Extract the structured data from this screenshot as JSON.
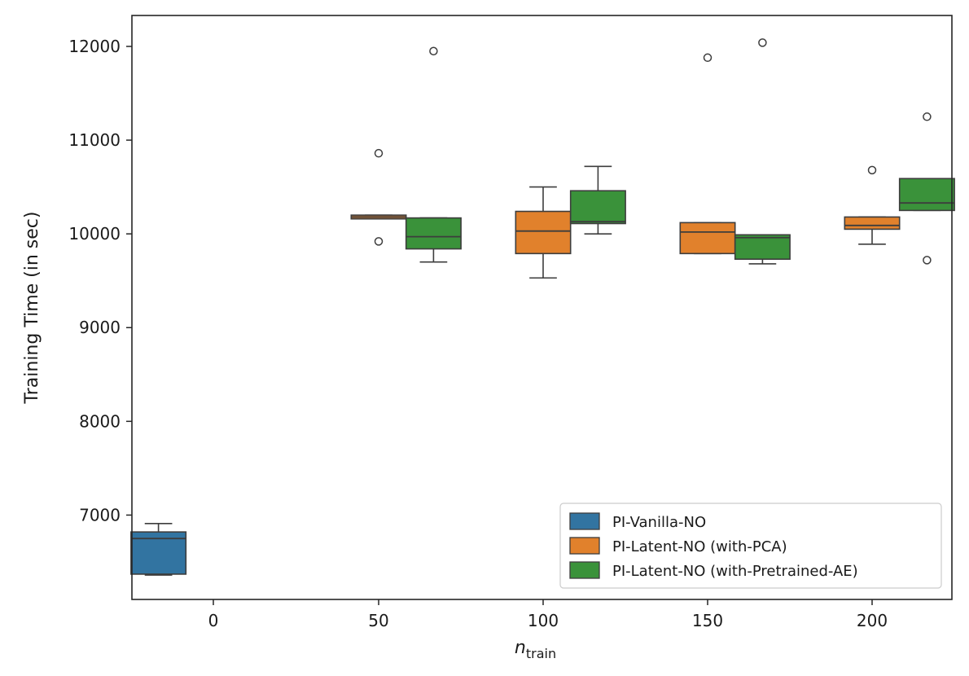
{
  "chart_data": {
    "type": "boxplot",
    "title": "",
    "xlabel_base": "n",
    "xlabel_sub": "train",
    "ylabel": "Training Time (in sec)",
    "x_ticks": [
      "0",
      "50",
      "100",
      "150",
      "200"
    ],
    "y_ticks": [
      7000,
      8000,
      9000,
      10000,
      11000,
      12000
    ],
    "ylim": [
      6100,
      12330
    ],
    "legend_location": "lower-right",
    "series": [
      {
        "name": "PI-Vanilla-NO",
        "color": "#3274a1",
        "boxes": [
          {
            "group": "0",
            "whisker_low": 6360,
            "q1": 6370,
            "median": 6750,
            "q3": 6820,
            "whisker_high": 6910,
            "outliers": []
          }
        ]
      },
      {
        "name": "PI-Latent-NO (with-PCA)",
        "color": "#e1812c",
        "boxes": [
          {
            "group": "50",
            "whisker_low": 10160,
            "q1": 10160,
            "median": 10180,
            "q3": 10200,
            "whisker_high": 10200,
            "outliers": [
              10860,
              9920
            ]
          },
          {
            "group": "100",
            "whisker_low": 9530,
            "q1": 9790,
            "median": 10030,
            "q3": 10240,
            "whisker_high": 10500,
            "outliers": []
          },
          {
            "group": "150",
            "whisker_low": 9790,
            "q1": 9790,
            "median": 10020,
            "q3": 10120,
            "whisker_high": 10120,
            "outliers": [
              11880
            ]
          },
          {
            "group": "200",
            "whisker_low": 9890,
            "q1": 10050,
            "median": 10090,
            "q3": 10180,
            "whisker_high": 10180,
            "outliers": [
              10680
            ]
          }
        ]
      },
      {
        "name": "PI-Latent-NO (with-Pretrained-AE)",
        "color": "#3a923a",
        "boxes": [
          {
            "group": "50",
            "whisker_low": 9700,
            "q1": 9840,
            "median": 9970,
            "q3": 10170,
            "whisker_high": 10170,
            "outliers": [
              11950
            ]
          },
          {
            "group": "100",
            "whisker_low": 10000,
            "q1": 10110,
            "median": 10130,
            "q3": 10460,
            "whisker_high": 10720,
            "outliers": []
          },
          {
            "group": "150",
            "whisker_low": 9680,
            "q1": 9730,
            "median": 9960,
            "q3": 9990,
            "whisker_high": 9990,
            "outliers": [
              12040
            ]
          },
          {
            "group": "200",
            "whisker_low": 10250,
            "q1": 10250,
            "median": 10330,
            "q3": 10590,
            "whisker_high": 10590,
            "outliers": [
              11250,
              9720
            ]
          }
        ]
      }
    ]
  }
}
